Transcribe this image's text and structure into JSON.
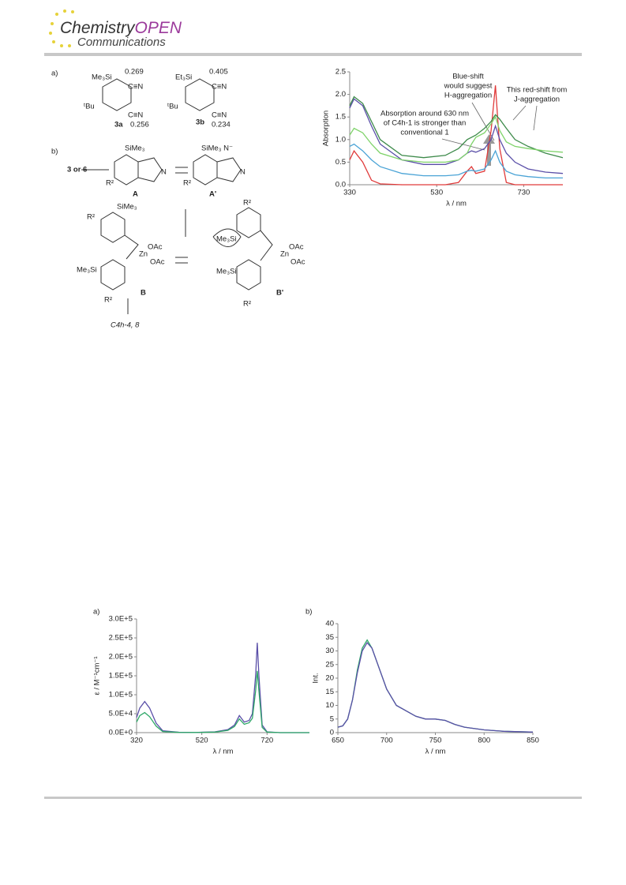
{
  "header": {
    "brand": "Chemistry",
    "brand_accent": "OPEN",
    "section": "Communications"
  },
  "scheme": {
    "labels": [
      "a)",
      "Me₃Si",
      "0.269",
      "C≡N",
      "ᵗBu",
      "C≡N",
      "3a",
      "0.256",
      "Et₃Si",
      "0.405",
      "C≡N",
      "ᵗBu",
      "C≡N",
      "3b",
      "0.234",
      "b)",
      "SiMe₃",
      "3 or 6",
      "N",
      "R²",
      "A",
      "SiMe₃ N⁻",
      "N",
      "R²",
      "A'",
      "R²",
      "SiMe₃",
      "OAc",
      "Zn",
      "OAc",
      "Me₃Si",
      "R²",
      "B",
      "R²",
      "Me₃Si",
      "Me₃Si",
      "OAc",
      "Zn",
      "OAc",
      "R²",
      "B'",
      "C4h-4, 8"
    ]
  },
  "chart_data": [
    {
      "type": "line",
      "ylabel": "Absorption",
      "xlabel": "λ / nm",
      "x": [
        330,
        340,
        360,
        380,
        400,
        450,
        500,
        550,
        580,
        600,
        610,
        620,
        640,
        655,
        665,
        675,
        690,
        710,
        740,
        780,
        820
      ],
      "series": [
        {
          "color": "#e03a3a",
          "values": [
            0.55,
            0.75,
            0.5,
            0.1,
            0.02,
            0,
            0,
            0,
            0.05,
            0.3,
            0.4,
            0.25,
            0.3,
            1.2,
            2.2,
            0.8,
            0.05,
            0,
            0,
            0,
            0
          ]
        },
        {
          "color": "#4aa3d6",
          "values": [
            0.85,
            0.9,
            0.75,
            0.55,
            0.4,
            0.25,
            0.2,
            0.2,
            0.22,
            0.3,
            0.32,
            0.3,
            0.35,
            0.55,
            0.75,
            0.5,
            0.3,
            0.22,
            0.18,
            0.15,
            0.15
          ]
        },
        {
          "color": "#5a4fa8",
          "values": [
            1.7,
            1.9,
            1.75,
            1.3,
            0.9,
            0.55,
            0.45,
            0.45,
            0.55,
            0.7,
            0.75,
            0.72,
            0.8,
            1.0,
            1.3,
            1.0,
            0.7,
            0.5,
            0.35,
            0.28,
            0.25
          ]
        },
        {
          "color": "#3d8a4a",
          "values": [
            1.75,
            1.95,
            1.8,
            1.4,
            1.0,
            0.65,
            0.6,
            0.65,
            0.8,
            1.0,
            1.05,
            1.1,
            1.25,
            1.4,
            1.55,
            1.45,
            1.25,
            1.0,
            0.85,
            0.7,
            0.6
          ]
        },
        {
          "color": "#7fd36a",
          "values": [
            1.1,
            1.25,
            1.15,
            0.9,
            0.7,
            0.55,
            0.5,
            0.5,
            0.55,
            0.7,
            0.9,
            1.05,
            1.15,
            1.35,
            1.5,
            1.2,
            0.95,
            0.85,
            0.8,
            0.75,
            0.72
          ]
        }
      ],
      "xlim": [
        330,
        820
      ],
      "xticks": [
        330,
        530,
        730
      ],
      "ylim": [
        0,
        2.5
      ],
      "yticks": [
        {
          "value": 0,
          "label": "0.0"
        },
        0.5,
        {
          "value": 1,
          "label": "1.0"
        },
        1.5,
        {
          "value": 2,
          "label": "2.0"
        },
        2.5
      ],
      "annotations": [
        {
          "lines": [
            "Blue-shift",
            "would suggest",
            "H-aggregation"
          ]
        },
        {
          "lines": [
            "This red-shift from",
            "J-aggregation"
          ]
        },
        {
          "lines": [
            "Absorption around 630 nm",
            "of C4h-1 is stronger than",
            "conventional 1"
          ]
        }
      ]
    },
    {
      "type": "line",
      "panel_label": "a)",
      "ylabel": "ε / M⁻¹cm⁻¹",
      "xlabel": "λ / nm",
      "x": [
        320,
        330,
        345,
        360,
        380,
        400,
        450,
        500,
        560,
        600,
        620,
        635,
        650,
        665,
        675,
        685,
        690,
        695,
        705,
        720,
        760,
        850
      ],
      "series": [
        {
          "color": "#5a4fa8",
          "values": [
            40000,
            65000,
            82000,
            65000,
            25000,
            5000,
            1000,
            500,
            2000,
            8000,
            20000,
            45000,
            28000,
            32000,
            50000,
            150000,
            237000,
            150000,
            20000,
            2000,
            0,
            0
          ]
        },
        {
          "color": "#2fa868",
          "values": [
            28000,
            45000,
            53000,
            42000,
            17000,
            3000,
            700,
            400,
            1500,
            6000,
            16000,
            36000,
            22000,
            26000,
            38000,
            110000,
            163000,
            110000,
            14000,
            1500,
            0,
            0
          ]
        }
      ],
      "xlim": [
        320,
        850
      ],
      "xticks": [
        320,
        520,
        720
      ],
      "ylim": [
        0,
        300000
      ],
      "yticks": [
        {
          "value": 0,
          "label": "0.0E+0"
        },
        {
          "value": 50000,
          "label": "5.0E+4"
        },
        {
          "value": 100000,
          "label": "1.0E+5"
        },
        {
          "value": 150000,
          "label": "1.5E+5"
        },
        {
          "value": 200000,
          "label": "2.0E+5"
        },
        {
          "value": 250000,
          "label": "2.5E+5"
        },
        {
          "value": 300000,
          "label": "3.0E+5"
        }
      ]
    },
    {
      "type": "line",
      "panel_label": "b)",
      "ylabel": "Int.",
      "xlabel": "λ / nm",
      "x": [
        650,
        655,
        660,
        665,
        670,
        675,
        680,
        685,
        690,
        700,
        710,
        720,
        730,
        740,
        750,
        760,
        770,
        780,
        800,
        820,
        850
      ],
      "series": [
        {
          "color": "#2fa868",
          "values": [
            2,
            2.5,
            5,
            12,
            23,
            31,
            34,
            31,
            26,
            16,
            10,
            8,
            6,
            5,
            5,
            4.5,
            3,
            2,
            1,
            0.5,
            0.2
          ]
        },
        {
          "color": "#5a4fa8",
          "values": [
            2,
            2.5,
            5,
            12,
            22,
            30,
            33,
            31,
            26,
            16,
            10,
            8,
            6,
            5,
            5,
            4.5,
            3,
            2,
            1,
            0.5,
            0.2
          ]
        }
      ],
      "xlim": [
        650,
        850
      ],
      "xticks": [
        650,
        700,
        750,
        800,
        850
      ],
      "ylim": [
        0,
        40
      ],
      "yticks": [
        0,
        5,
        10,
        15,
        20,
        25,
        30,
        35,
        40
      ]
    }
  ]
}
